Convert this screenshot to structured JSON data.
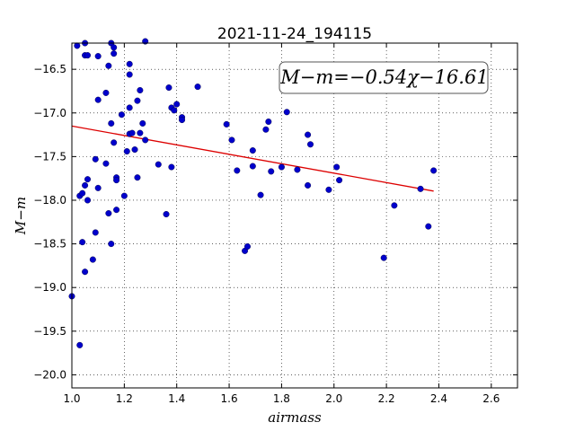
{
  "chart_data": {
    "type": "scatter",
    "title": "2021-11-24_194115",
    "xlabel": "airmass",
    "ylabel": "M−m",
    "xlim": [
      1.0,
      2.7
    ],
    "ylim": [
      -20.15,
      -16.2
    ],
    "x_inverted": false,
    "y_inverted": true,
    "xticks": [
      1.0,
      1.2,
      1.4,
      1.6,
      1.8,
      2.0,
      2.2,
      2.4,
      2.6
    ],
    "xtick_labels": [
      "1.0",
      "1.2",
      "1.4",
      "1.6",
      "1.8",
      "2.0",
      "2.2",
      "2.4",
      "2.6"
    ],
    "yticks": [
      -16.5,
      -17.0,
      -17.5,
      -18.0,
      -18.5,
      -19.0,
      -19.5,
      -20.0
    ],
    "ytick_labels": [
      "−16.5",
      "−17.0",
      "−17.5",
      "−18.0",
      "−18.5",
      "−19.0",
      "−19.5",
      "−20.0"
    ],
    "grid": true,
    "annotation": "M−m=−0.54χ−16.61",
    "annotation_position": "top-right",
    "colors": {
      "points": "#0000cc",
      "fit_line": "#dd0000"
    },
    "fit": {
      "slope": -0.54,
      "intercept": -16.61,
      "x_range": [
        1.0,
        2.38
      ]
    },
    "points": [
      [
        1.0,
        -19.1
      ],
      [
        1.02,
        -16.23
      ],
      [
        1.03,
        -19.66
      ],
      [
        1.03,
        -17.95
      ],
      [
        1.04,
        -18.48
      ],
      [
        1.04,
        -17.92
      ],
      [
        1.05,
        -16.2
      ],
      [
        1.05,
        -16.34
      ],
      [
        1.05,
        -18.82
      ],
      [
        1.05,
        -17.83
      ],
      [
        1.06,
        -16.34
      ],
      [
        1.06,
        -17.76
      ],
      [
        1.06,
        -18.0
      ],
      [
        1.08,
        -18.68
      ],
      [
        1.09,
        -17.53
      ],
      [
        1.09,
        -18.37
      ],
      [
        1.1,
        -16.35
      ],
      [
        1.1,
        -16.85
      ],
      [
        1.1,
        -17.86
      ],
      [
        1.13,
        -16.77
      ],
      [
        1.13,
        -17.58
      ],
      [
        1.14,
        -16.46
      ],
      [
        1.14,
        -18.15
      ],
      [
        1.15,
        -16.2
      ],
      [
        1.15,
        -17.12
      ],
      [
        1.15,
        -18.5
      ],
      [
        1.16,
        -16.32
      ],
      [
        1.16,
        -16.25
      ],
      [
        1.16,
        -17.34
      ],
      [
        1.17,
        -17.74
      ],
      [
        1.17,
        -17.77
      ],
      [
        1.17,
        -18.11
      ],
      [
        1.19,
        -17.02
      ],
      [
        1.2,
        -17.95
      ],
      [
        1.21,
        -17.44
      ],
      [
        1.22,
        -16.44
      ],
      [
        1.22,
        -16.56
      ],
      [
        1.22,
        -16.94
      ],
      [
        1.22,
        -17.24
      ],
      [
        1.23,
        -17.23
      ],
      [
        1.24,
        -17.42
      ],
      [
        1.25,
        -16.86
      ],
      [
        1.25,
        -17.74
      ],
      [
        1.26,
        -16.74
      ],
      [
        1.26,
        -17.23
      ],
      [
        1.27,
        -17.12
      ],
      [
        1.28,
        -16.18
      ],
      [
        1.28,
        -17.31
      ],
      [
        1.33,
        -17.59
      ],
      [
        1.36,
        -18.16
      ],
      [
        1.37,
        -16.71
      ],
      [
        1.38,
        -16.94
      ],
      [
        1.38,
        -17.62
      ],
      [
        1.39,
        -16.97
      ],
      [
        1.4,
        -16.9
      ],
      [
        1.42,
        -17.05
      ],
      [
        1.42,
        -17.08
      ],
      [
        1.48,
        -16.7
      ],
      [
        1.59,
        -17.13
      ],
      [
        1.61,
        -17.31
      ],
      [
        1.63,
        -17.66
      ],
      [
        1.66,
        -18.58
      ],
      [
        1.67,
        -18.53
      ],
      [
        1.69,
        -17.43
      ],
      [
        1.69,
        -17.61
      ],
      [
        1.72,
        -17.94
      ],
      [
        1.74,
        -17.19
      ],
      [
        1.75,
        -17.1
      ],
      [
        1.76,
        -17.67
      ],
      [
        1.8,
        -17.62
      ],
      [
        1.82,
        -16.99
      ],
      [
        1.86,
        -17.65
      ],
      [
        1.9,
        -17.25
      ],
      [
        1.9,
        -17.83
      ],
      [
        1.91,
        -17.36
      ],
      [
        1.98,
        -17.88
      ],
      [
        2.01,
        -17.62
      ],
      [
        2.02,
        -17.77
      ],
      [
        2.19,
        -18.66
      ],
      [
        2.23,
        -18.06
      ],
      [
        2.33,
        -17.87
      ],
      [
        2.36,
        -18.3
      ],
      [
        2.38,
        -17.66
      ]
    ]
  }
}
